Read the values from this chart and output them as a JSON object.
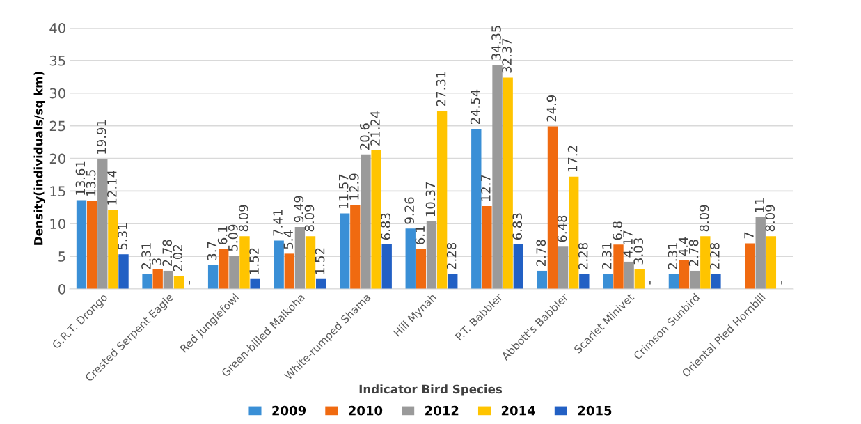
{
  "chart_data": {
    "type": "bar",
    "xlabel": "Indicator Bird Species",
    "ylabel": "Density(individuals/sq km)",
    "categories": [
      "G.R.T. Drongo",
      "Crested Serpent Eagle",
      "Red Junglefowl",
      "Green-billed Malkoha",
      "White-rumped Shama",
      "Hill Mynah",
      "P.T. Babbler",
      "Abbott's Babbler",
      "Scarlet Minivet",
      "Crimson Sunbird",
      "Oriental Pied Hornbill"
    ],
    "series": [
      {
        "name": "2009",
        "color": "#3a8fd6",
        "values": [
          13.61,
          2.31,
          3.7,
          7.41,
          11.57,
          9.26,
          24.54,
          2.78,
          2.31,
          2.31,
          null
        ],
        "value_labels": [
          "13.61",
          "2.31",
          "3.7",
          "7.41",
          "11.57",
          "9.26",
          "24.54",
          "2.78",
          "2.31",
          "2.31",
          null
        ]
      },
      {
        "name": "2010",
        "color": "#f06a10",
        "values": [
          13.5,
          3,
          6.1,
          5.4,
          12.9,
          6.1,
          12.7,
          24.9,
          6.8,
          4.4,
          7
        ],
        "value_labels": [
          "13.5",
          "3",
          "6.1",
          "5.4",
          "12.9",
          "6.1",
          "12.7",
          "24.9",
          "6.8",
          "4.4",
          "7"
        ]
      },
      {
        "name": "2012",
        "color": "#9a9a9a",
        "values": [
          19.91,
          2.78,
          5.09,
          9.49,
          20.6,
          10.37,
          34.35,
          6.48,
          4.17,
          2.78,
          11
        ],
        "value_labels": [
          "19.91",
          "2.78",
          "5.09",
          "9.49",
          "20.6",
          "10.37",
          "34.35",
          "6.48",
          "4.17",
          "2.78",
          "11"
        ]
      },
      {
        "name": "2014",
        "color": "#ffc400",
        "values": [
          12.14,
          2.02,
          8.09,
          8.09,
          21.24,
          27.31,
          32.37,
          17.2,
          3.03,
          8.09,
          8.09
        ],
        "value_labels": [
          "12.14",
          "2.02",
          "8.09",
          "8.09",
          "21.24",
          "27.31",
          "32.37",
          "17.2",
          "3.03",
          "8.09",
          "8.09"
        ]
      },
      {
        "name": "2015",
        "color": "#2260c4",
        "values": [
          5.31,
          null,
          1.52,
          1.52,
          6.83,
          2.28,
          6.83,
          2.28,
          null,
          2.28,
          null
        ],
        "value_labels": [
          "5.31",
          "-",
          "1.52",
          "1.52",
          "6.83",
          "2.28",
          "6.83",
          "2.28",
          "-",
          "2.28",
          "-"
        ]
      }
    ],
    "ylim": [
      0,
      40
    ],
    "yticks": [
      0,
      5,
      10,
      15,
      20,
      25,
      30,
      35,
      40
    ],
    "grid": "y",
    "legend": "bottom"
  }
}
